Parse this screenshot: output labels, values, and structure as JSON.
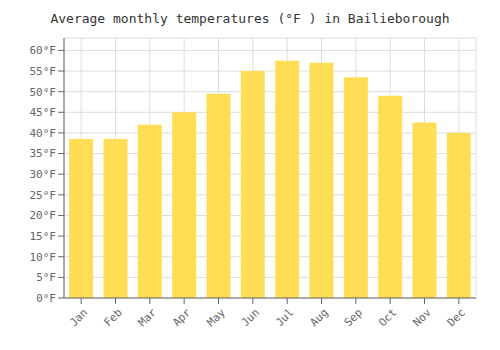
{
  "chart_data": {
    "type": "bar",
    "title": "Average monthly temperatures (°F ) in Bailieborough",
    "categories": [
      "Jan",
      "Feb",
      "Mar",
      "Apr",
      "May",
      "Jun",
      "Jul",
      "Aug",
      "Sep",
      "Oct",
      "Nov",
      "Dec"
    ],
    "values": [
      38.5,
      38.5,
      42.0,
      45.0,
      49.5,
      55.0,
      57.5,
      57.0,
      53.5,
      49.0,
      42.5,
      40.0
    ],
    "color": "#FFDD55",
    "ylim": [
      0,
      63
    ],
    "yticks": [
      {
        "value": 0,
        "label": "0°F"
      },
      {
        "value": 5,
        "label": "5°F"
      },
      {
        "value": 10,
        "label": "10°F"
      },
      {
        "value": 15,
        "label": "15°F"
      },
      {
        "value": 20,
        "label": "20°F"
      },
      {
        "value": 25,
        "label": "25°F"
      },
      {
        "value": 30,
        "label": "30°F"
      },
      {
        "value": 35,
        "label": "35°F"
      },
      {
        "value": 40,
        "label": "40°F"
      },
      {
        "value": 45,
        "label": "45°F"
      },
      {
        "value": 50,
        "label": "50°F"
      },
      {
        "value": 55,
        "label": "55°F"
      },
      {
        "value": 60,
        "label": "60°F"
      }
    ],
    "grid": true
  }
}
